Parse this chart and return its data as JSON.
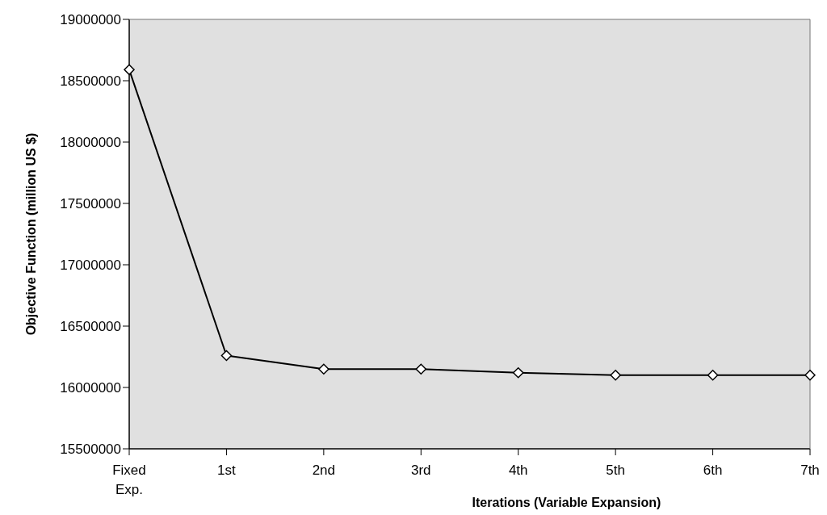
{
  "chart_data": {
    "type": "line",
    "xlabel": "Iterations (Variable Expansion)",
    "ylabel": "Objective Function (million US $)",
    "categories": [
      "Fixed Exp.",
      "1st",
      "2nd",
      "3rd",
      "4th",
      "5th",
      "6th",
      "7th"
    ],
    "series": [
      {
        "color": "#000000",
        "values": [
          18590000,
          16260000,
          16150000,
          16150000,
          16120000,
          16100000,
          16100000,
          16100000
        ]
      }
    ],
    "ylim": [
      15500000,
      19000000
    ],
    "yticks": [
      15500000,
      16000000,
      16500000,
      17000000,
      17500000,
      18000000,
      18500000,
      19000000
    ],
    "grid": false,
    "legend": false,
    "marker": "diamond",
    "line_style": "solid"
  }
}
